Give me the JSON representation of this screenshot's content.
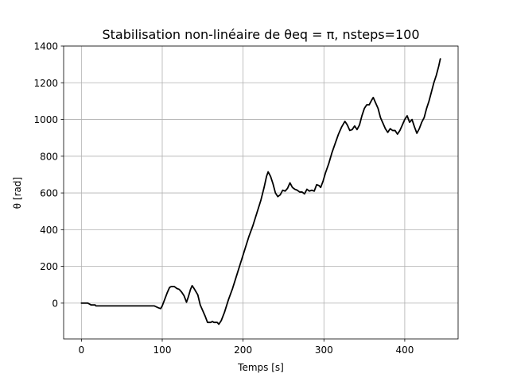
{
  "chart_data": {
    "type": "line",
    "title": "Stabilisation non-linéaire de θeq = π, nsteps=100",
    "xlabel": "Temps [s]",
    "ylabel": "θ [rad]",
    "xlim": [
      -22,
      466
    ],
    "ylim": [
      -195,
      1400
    ],
    "x_ticks": [
      0,
      100,
      200,
      300,
      400
    ],
    "y_ticks": [
      0,
      200,
      400,
      600,
      800,
      1000,
      1200,
      1400
    ],
    "x_tick_labels": [
      "0",
      "100",
      "200",
      "300",
      "400"
    ],
    "y_tick_labels": [
      "0",
      "200",
      "400",
      "600",
      "800",
      "1000",
      "1200",
      "1400"
    ],
    "grid": true,
    "legend": "none",
    "series": [
      {
        "color": "#000000",
        "points": [
          [
            0,
            0
          ],
          [
            8,
            0
          ],
          [
            10,
            -5
          ],
          [
            12,
            -10
          ],
          [
            17,
            -10
          ],
          [
            18,
            -15
          ],
          [
            90,
            -15
          ],
          [
            95,
            -25
          ],
          [
            98,
            -30
          ],
          [
            100,
            -15
          ],
          [
            103,
            20
          ],
          [
            106,
            55
          ],
          [
            109,
            85
          ],
          [
            111,
            90
          ],
          [
            115,
            90
          ],
          [
            118,
            80
          ],
          [
            121,
            75
          ],
          [
            124,
            60
          ],
          [
            127,
            40
          ],
          [
            130,
            5
          ],
          [
            132,
            30
          ],
          [
            135,
            75
          ],
          [
            137,
            95
          ],
          [
            140,
            75
          ],
          [
            144,
            45
          ],
          [
            147,
            -10
          ],
          [
            150,
            -40
          ],
          [
            153,
            -70
          ],
          [
            156,
            -105
          ],
          [
            160,
            -105
          ],
          [
            162,
            -100
          ],
          [
            164,
            -105
          ],
          [
            168,
            -105
          ],
          [
            170,
            -115
          ],
          [
            173,
            -95
          ],
          [
            177,
            -50
          ],
          [
            182,
            20
          ],
          [
            187,
            80
          ],
          [
            192,
            150
          ],
          [
            197,
            220
          ],
          [
            202,
            290
          ],
          [
            207,
            360
          ],
          [
            212,
            420
          ],
          [
            217,
            490
          ],
          [
            222,
            560
          ],
          [
            226,
            630
          ],
          [
            229,
            690
          ],
          [
            231,
            715
          ],
          [
            234,
            690
          ],
          [
            237,
            650
          ],
          [
            240,
            600
          ],
          [
            243,
            580
          ],
          [
            246,
            590
          ],
          [
            249,
            615
          ],
          [
            252,
            610
          ],
          [
            255,
            625
          ],
          [
            258,
            655
          ],
          [
            261,
            630
          ],
          [
            264,
            620
          ],
          [
            267,
            615
          ],
          [
            270,
            605
          ],
          [
            273,
            605
          ],
          [
            276,
            595
          ],
          [
            279,
            620
          ],
          [
            282,
            610
          ],
          [
            285,
            615
          ],
          [
            288,
            610
          ],
          [
            291,
            645
          ],
          [
            294,
            640
          ],
          [
            296,
            630
          ],
          [
            299,
            665
          ],
          [
            302,
            710
          ],
          [
            306,
            760
          ],
          [
            310,
            820
          ],
          [
            314,
            870
          ],
          [
            318,
            920
          ],
          [
            322,
            960
          ],
          [
            326,
            990
          ],
          [
            329,
            970
          ],
          [
            332,
            940
          ],
          [
            335,
            945
          ],
          [
            338,
            965
          ],
          [
            341,
            945
          ],
          [
            344,
            970
          ],
          [
            347,
            1020
          ],
          [
            350,
            1060
          ],
          [
            353,
            1080
          ],
          [
            356,
            1080
          ],
          [
            359,
            1105
          ],
          [
            361,
            1120
          ],
          [
            364,
            1090
          ],
          [
            367,
            1060
          ],
          [
            370,
            1010
          ],
          [
            373,
            980
          ],
          [
            376,
            950
          ],
          [
            379,
            930
          ],
          [
            382,
            950
          ],
          [
            385,
            940
          ],
          [
            388,
            940
          ],
          [
            391,
            920
          ],
          [
            394,
            940
          ],
          [
            397,
            970
          ],
          [
            400,
            1000
          ],
          [
            403,
            1020
          ],
          [
            406,
            985
          ],
          [
            409,
            1000
          ],
          [
            412,
            960
          ],
          [
            415,
            925
          ],
          [
            418,
            950
          ],
          [
            421,
            985
          ],
          [
            424,
            1010
          ],
          [
            427,
            1060
          ],
          [
            430,
            1100
          ],
          [
            433,
            1150
          ],
          [
            436,
            1200
          ],
          [
            439,
            1240
          ],
          [
            442,
            1290
          ],
          [
            444,
            1330
          ]
        ]
      }
    ]
  }
}
